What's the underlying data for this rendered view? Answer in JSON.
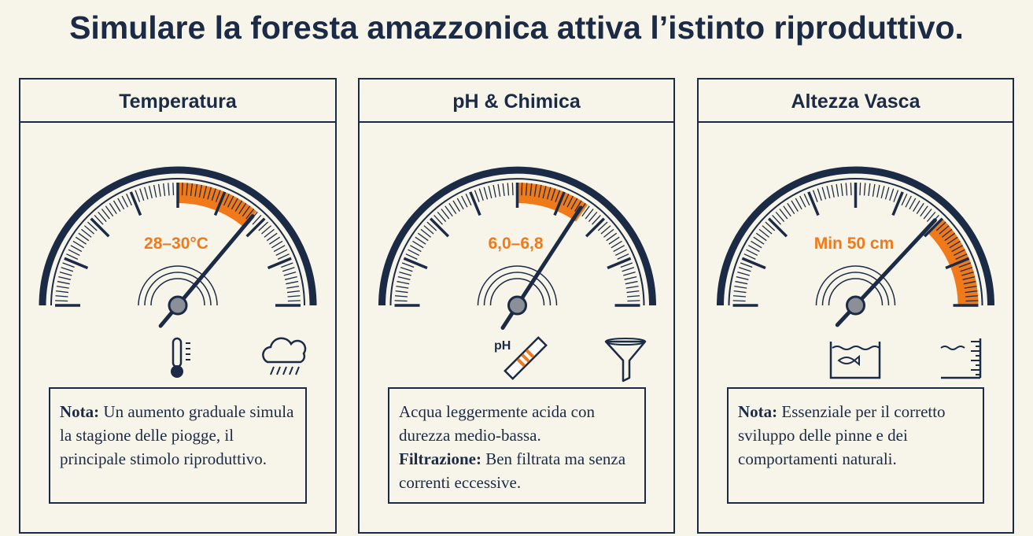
{
  "title": "Simulare la foresta amazzonica attiva l’istinto riproduttivo.",
  "panels": [
    {
      "title": "Temperatura",
      "gauge_label": "28–30°C",
      "note": [
        {
          "label": "Nota:",
          "text": "Un aumento graduale simula la stagione delle piogge, il principale stimolo riproduttivo."
        }
      ]
    },
    {
      "title": "pH & Chimica",
      "gauge_label": "6,0–6,8",
      "icon_label": "pH",
      "note": [
        {
          "text": "Acqua leggermente acida con durezza medio-bassa."
        },
        {
          "label": "Filtrazione:",
          "text": "Ben filtrata ma senza correnti eccessive."
        }
      ]
    },
    {
      "title": "Altezza Vasca",
      "gauge_label": "Min 50 cm",
      "note": [
        {
          "label": "Nota:",
          "text": "Essenziale per il corretto sviluppo delle pinne e dei comportamenti naturali."
        }
      ]
    }
  ]
}
